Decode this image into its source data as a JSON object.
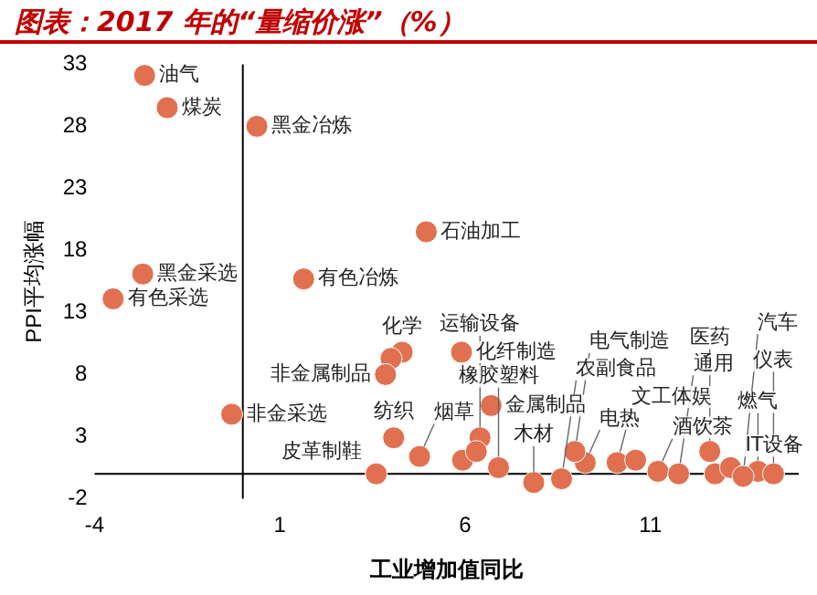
{
  "chart_data": {
    "type": "scatter",
    "title": "图表：2017 年的“量缩价涨”（%）",
    "xlabel": "工业增加值同比",
    "ylabel": "PPI平均涨幅",
    "x": [
      -2.65,
      -2.04,
      0.38,
      4.95,
      1.64,
      -2.7,
      -3.5,
      -0.3,
      4.3,
      4.0,
      3.85,
      5.9,
      6.7,
      3.6,
      4.07,
      4.77,
      6.4,
      5.93,
      6.3,
      6.9,
      7.85,
      9.24,
      8.6,
      8.96,
      10.1,
      10.6,
      11.2,
      11.76,
      12.6,
      12.74,
      13.16,
      13.9,
      14.32,
      13.5
    ],
    "series": [
      {
        "color": "#e0704f",
        "values": [
          32.1,
          29.5,
          28.0,
          19.5,
          15.7,
          16.1,
          14.1,
          4.8,
          9.8,
          9.3,
          8.0,
          9.8,
          5.5,
          0.0,
          2.9,
          1.4,
          2.9,
          1.1,
          1.8,
          0.5,
          -0.7,
          0.9,
          -0.4,
          1.8,
          0.9,
          1.1,
          0.2,
          0.0,
          1.8,
          0.0,
          0.5,
          0.2,
          0.0,
          -0.2
        ]
      }
    ],
    "xlim": [
      -4,
      15
    ],
    "xticks": [
      -4,
      1,
      6,
      11
    ],
    "ylim": [
      -2,
      33
    ],
    "yticks": [
      -2,
      3,
      8,
      13,
      18,
      23,
      28,
      33
    ],
    "grid": false,
    "marker": "circle",
    "legend": false,
    "annotations": [
      {
        "text": "油气",
        "x": -2.65,
        "y": 32.1
      },
      {
        "text": "煤炭",
        "x": -2.04,
        "y": 29.5
      },
      {
        "text": "黑金冶炼",
        "x": 0.38,
        "y": 28.0
      },
      {
        "text": "石油加工",
        "x": 4.95,
        "y": 19.5
      },
      {
        "text": "有色冶炼",
        "x": 1.64,
        "y": 15.7
      },
      {
        "text": "黑金采选",
        "x": -2.7,
        "y": 16.1
      },
      {
        "text": "有色采选",
        "x": -3.5,
        "y": 14.1
      },
      {
        "text": "非金采选",
        "x": -0.3,
        "y": 4.8
      },
      {
        "text": "化学",
        "x": 4.3,
        "y": 9.8
      },
      {
        "text": "非金属制品",
        "x": 3.85,
        "y": 8.0
      },
      {
        "text": "化纤制造",
        "x": 5.9,
        "y": 9.8
      },
      {
        "text": "金属制品",
        "x": 6.7,
        "y": 5.5
      },
      {
        "text": "皮革制鞋",
        "x": 3.6,
        "y": 0.0
      },
      {
        "text": "纺织",
        "x": 4.07,
        "y": 2.9
      },
      {
        "text": "烟草",
        "x": 4.77,
        "y": 1.4
      },
      {
        "text": "运输设备",
        "x": 6.4,
        "y": 2.9
      },
      {
        "text": "橡胶塑料",
        "x": 6.9,
        "y": 0.5
      },
      {
        "text": "木材",
        "x": 7.85,
        "y": -0.7
      },
      {
        "text": "电热",
        "x": 9.24,
        "y": 0.9
      },
      {
        "text": "农副食品",
        "x": 8.6,
        "y": -0.4
      },
      {
        "text": "电气制造",
        "x": 8.96,
        "y": 1.8
      },
      {
        "text": "文工体娱",
        "x": 10.1,
        "y": 0.9
      },
      {
        "text": "酒饮茶",
        "x": 11.2,
        "y": 0.2
      },
      {
        "text": "通用",
        "x": 11.76,
        "y": 0.0
      },
      {
        "text": "医药",
        "x": 12.6,
        "y": 1.8
      },
      {
        "text": "IT设备",
        "x": 13.16,
        "y": 0.5
      },
      {
        "text": "燃气",
        "x": 13.9,
        "y": 0.2
      },
      {
        "text": "仪表",
        "x": 14.32,
        "y": 0.0
      },
      {
        "text": "汽车",
        "x": 13.5,
        "y": -0.2
      }
    ]
  }
}
